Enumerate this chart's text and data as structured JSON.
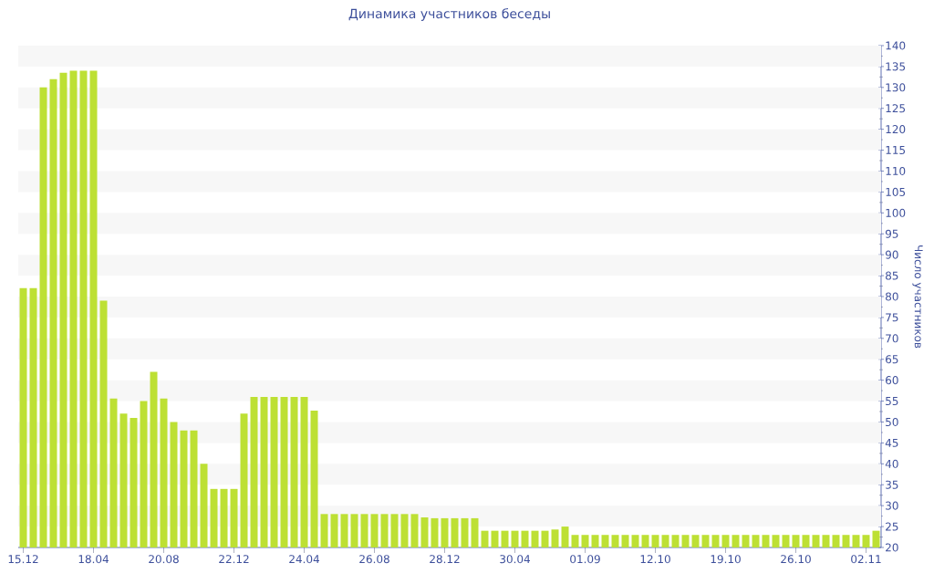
{
  "chart_data": {
    "type": "bar",
    "title": "Динамика участников беседы",
    "ylabel": "Число участников",
    "categories": [
      "15.12",
      null,
      null,
      null,
      null,
      null,
      null,
      "18.04",
      null,
      null,
      null,
      null,
      null,
      null,
      "20.08",
      null,
      null,
      null,
      null,
      null,
      null,
      "22.12",
      null,
      null,
      null,
      null,
      null,
      null,
      "24.04",
      null,
      null,
      null,
      null,
      null,
      null,
      "26.08",
      null,
      null,
      null,
      null,
      null,
      null,
      "28.12",
      null,
      null,
      null,
      null,
      null,
      null,
      "30.04",
      null,
      null,
      null,
      null,
      null,
      null,
      "01.09",
      null,
      null,
      null,
      null,
      null,
      null,
      "12.10",
      null,
      null,
      null,
      null,
      null,
      null,
      "19.10",
      null,
      null,
      null,
      null,
      null,
      null,
      "26.10",
      null,
      null,
      null,
      null,
      null,
      null,
      "02.11",
      null
    ],
    "values": [
      82,
      82,
      130,
      132,
      133.5,
      134,
      134,
      134,
      79,
      55.6,
      52,
      51,
      55,
      62,
      55.6,
      50,
      48,
      48,
      40,
      34,
      34,
      34,
      52,
      56,
      56,
      56,
      56,
      56,
      56,
      52.7,
      28,
      28,
      28,
      28,
      28,
      28,
      28,
      28,
      28,
      28,
      27.2,
      27,
      27,
      27,
      27,
      27,
      24,
      24,
      24,
      24,
      24,
      24,
      24,
      24.3,
      25,
      23,
      23,
      23,
      23,
      23,
      23,
      23,
      23,
      23,
      23,
      23,
      23,
      23,
      23,
      23,
      23,
      23,
      23,
      23,
      23,
      23,
      23,
      23,
      23,
      23,
      23,
      23,
      23,
      23,
      23,
      24
    ],
    "color": "#bde034",
    "ylim": [
      20,
      140
    ],
    "yticks": [
      20,
      25,
      30,
      35,
      40,
      45,
      50,
      55,
      60,
      65,
      70,
      75,
      80,
      85,
      90,
      95,
      100,
      105,
      110,
      115,
      120,
      125,
      130,
      135,
      140
    ]
  }
}
